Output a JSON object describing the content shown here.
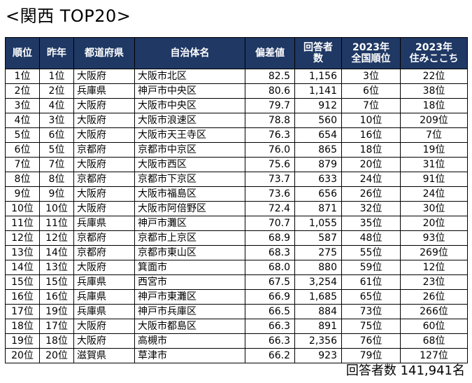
{
  "title": "<関西 TOP20>",
  "table": {
    "headers": {
      "rank": "順位",
      "last_year": "昨年",
      "prefecture": "都道府県",
      "municipality": "自治体名",
      "score": "偏差値",
      "respondents_line1": "回答者",
      "respondents_line2": "数",
      "national_line1": "2023年",
      "national_line2": "全国順位",
      "livability_line1": "2023年",
      "livability_line2": "住みここち"
    },
    "rows": [
      {
        "rank": "1位",
        "last": "1位",
        "pref": "大阪府",
        "city": "大阪市北区",
        "score": "82.5",
        "resp": "1,156",
        "nat": "3位",
        "live": "22位"
      },
      {
        "rank": "2位",
        "last": "2位",
        "pref": "兵庫県",
        "city": "神戸市中央区",
        "score": "80.6",
        "resp": "1,141",
        "nat": "6位",
        "live": "38位"
      },
      {
        "rank": "3位",
        "last": "4位",
        "pref": "大阪府",
        "city": "大阪市中央区",
        "score": "79.7",
        "resp": "912",
        "nat": "7位",
        "live": "18位"
      },
      {
        "rank": "4位",
        "last": "3位",
        "pref": "大阪府",
        "city": "大阪市浪速区",
        "score": "78.8",
        "resp": "560",
        "nat": "10位",
        "live": "209位"
      },
      {
        "rank": "5位",
        "last": "6位",
        "pref": "大阪府",
        "city": "大阪市天王寺区",
        "score": "76.3",
        "resp": "654",
        "nat": "16位",
        "live": "7位"
      },
      {
        "rank": "6位",
        "last": "5位",
        "pref": "京都府",
        "city": "京都市中京区",
        "score": "76.0",
        "resp": "865",
        "nat": "18位",
        "live": "19位"
      },
      {
        "rank": "7位",
        "last": "7位",
        "pref": "大阪府",
        "city": "大阪市西区",
        "score": "75.6",
        "resp": "879",
        "nat": "20位",
        "live": "31位"
      },
      {
        "rank": "8位",
        "last": "8位",
        "pref": "京都府",
        "city": "京都市下京区",
        "score": "73.7",
        "resp": "633",
        "nat": "24位",
        "live": "91位"
      },
      {
        "rank": "9位",
        "last": "9位",
        "pref": "大阪府",
        "city": "大阪市福島区",
        "score": "73.6",
        "resp": "656",
        "nat": "26位",
        "live": "24位"
      },
      {
        "rank": "10位",
        "last": "10位",
        "pref": "大阪府",
        "city": "大阪市阿倍野区",
        "score": "72.4",
        "resp": "871",
        "nat": "32位",
        "live": "30位"
      },
      {
        "rank": "11位",
        "last": "11位",
        "pref": "兵庫県",
        "city": "神戸市灘区",
        "score": "70.7",
        "resp": "1,055",
        "nat": "35位",
        "live": "20位"
      },
      {
        "rank": "12位",
        "last": "12位",
        "pref": "京都府",
        "city": "京都市上京区",
        "score": "68.9",
        "resp": "587",
        "nat": "48位",
        "live": "93位"
      },
      {
        "rank": "13位",
        "last": "14位",
        "pref": "京都府",
        "city": "京都市東山区",
        "score": "68.3",
        "resp": "275",
        "nat": "55位",
        "live": "269位"
      },
      {
        "rank": "14位",
        "last": "13位",
        "pref": "大阪府",
        "city": "箕面市",
        "score": "68.0",
        "resp": "880",
        "nat": "59位",
        "live": "12位"
      },
      {
        "rank": "15位",
        "last": "15位",
        "pref": "兵庫県",
        "city": "西宮市",
        "score": "67.5",
        "resp": "3,254",
        "nat": "61位",
        "live": "23位"
      },
      {
        "rank": "16位",
        "last": "16位",
        "pref": "兵庫県",
        "city": "神戸市東灘区",
        "score": "66.9",
        "resp": "1,685",
        "nat": "65位",
        "live": "26位"
      },
      {
        "rank": "17位",
        "last": "19位",
        "pref": "兵庫県",
        "city": "神戸市兵庫区",
        "score": "66.5",
        "resp": "884",
        "nat": "73位",
        "live": "266位"
      },
      {
        "rank": "18位",
        "last": "17位",
        "pref": "大阪府",
        "city": "大阪市都島区",
        "score": "66.3",
        "resp": "891",
        "nat": "75位",
        "live": "60位"
      },
      {
        "rank": "19位",
        "last": "18位",
        "pref": "大阪府",
        "city": "高槻市",
        "score": "66.3",
        "resp": "2,356",
        "nat": "76位",
        "live": "68位"
      },
      {
        "rank": "20位",
        "last": "20位",
        "pref": "滋賀県",
        "city": "草津市",
        "score": "66.2",
        "resp": "923",
        "nat": "79位",
        "live": "127位"
      }
    ]
  },
  "footer": "回答者数 141,941名",
  "colors": {
    "header_bg": "#1f3864",
    "header_text": "#ffffff"
  }
}
